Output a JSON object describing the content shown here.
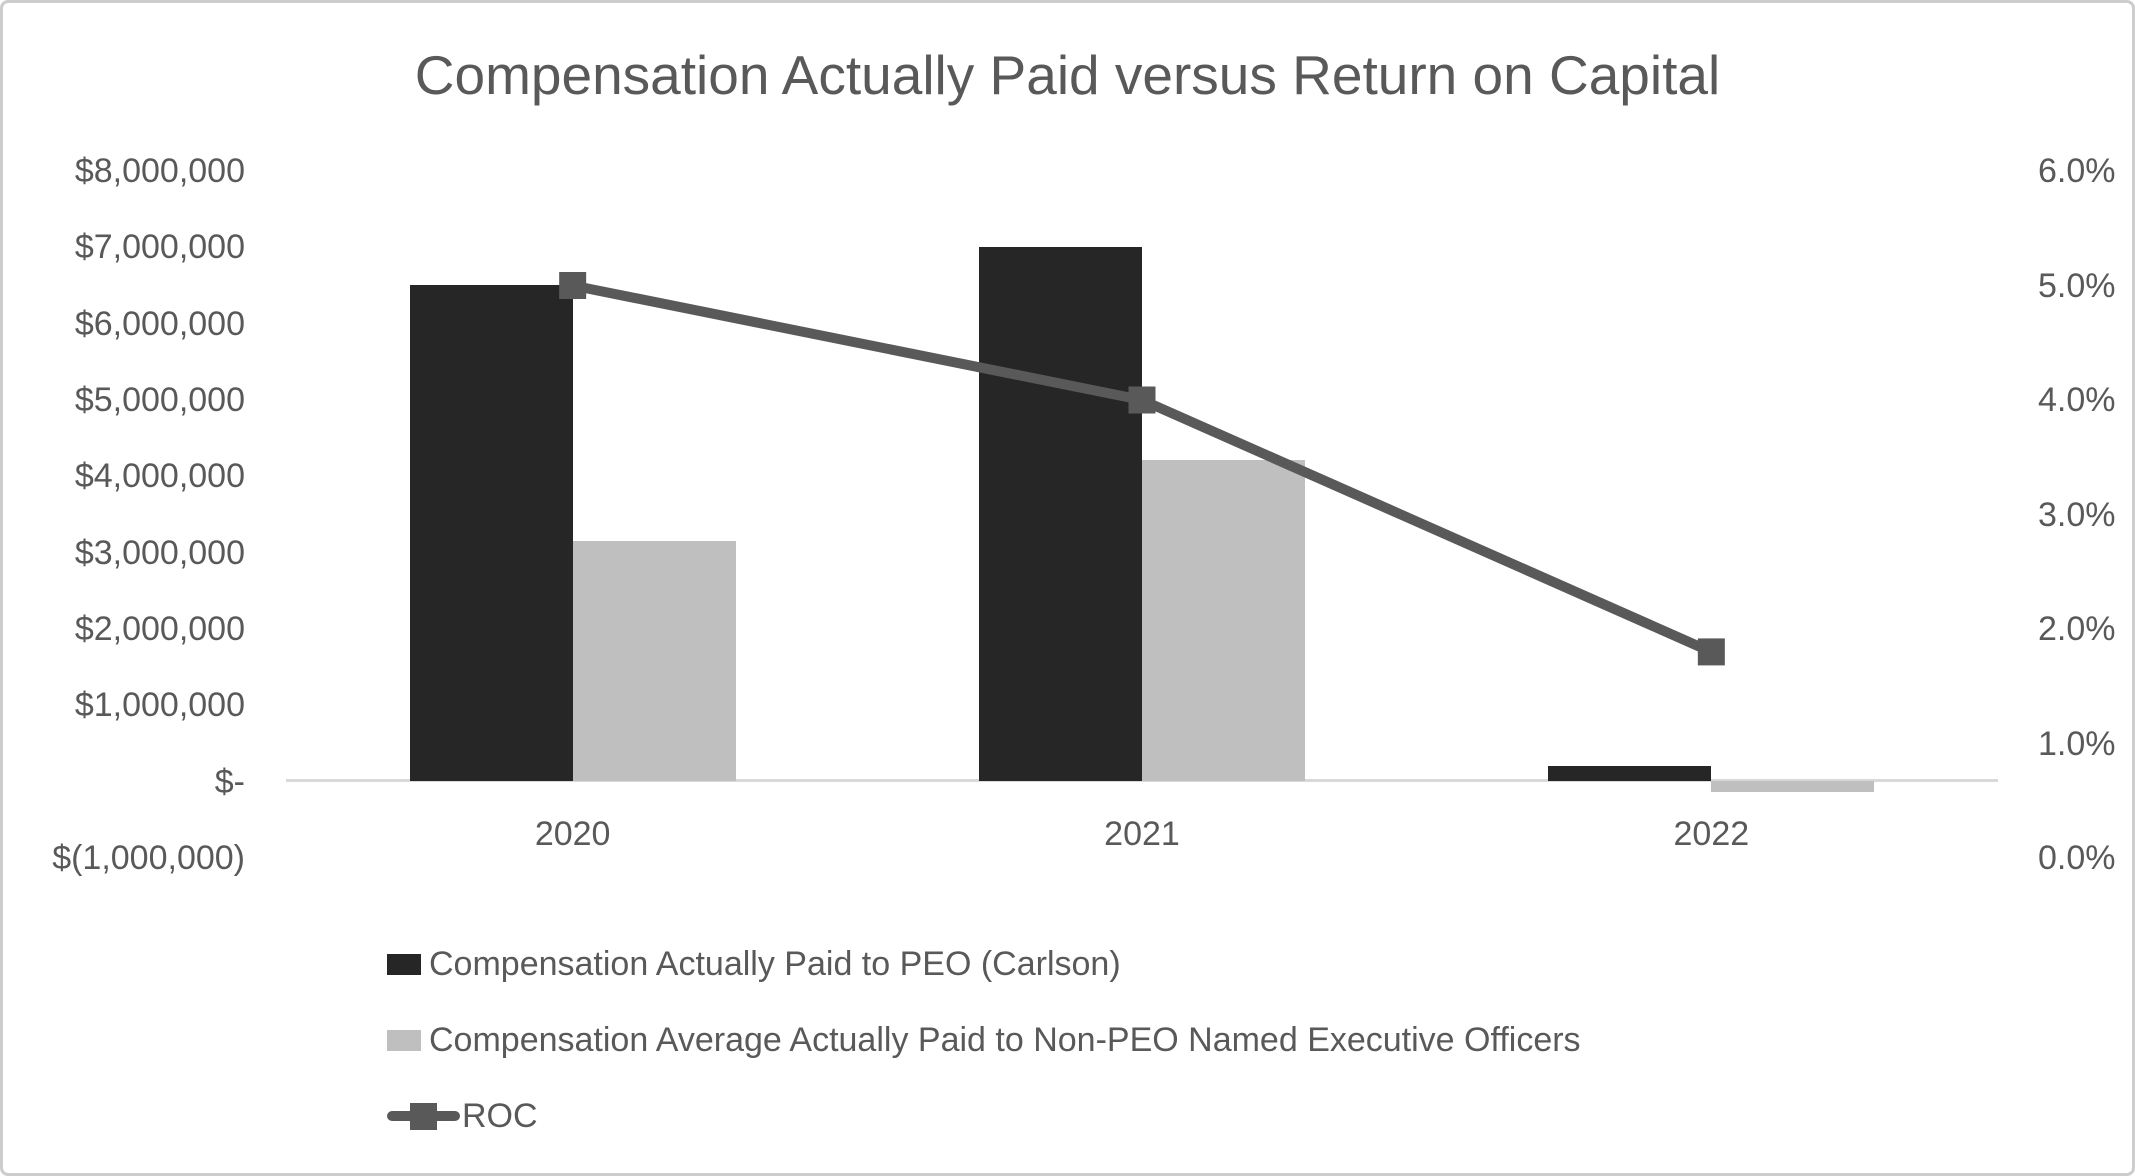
{
  "chart_data": {
    "type": "combo",
    "title": "Compensation Actually Paid versus Return on Capital",
    "categories": [
      "2020",
      "2021",
      "2022"
    ],
    "series": [
      {
        "name": "Compensation Actually Paid to PEO (Carlson)",
        "type": "bar",
        "axis": "left",
        "color": "#262626",
        "values": [
          6500000,
          7000000,
          200000
        ]
      },
      {
        "name": "Compensation Average Actually Paid to Non-PEO Named Executive Officers",
        "type": "bar",
        "axis": "left",
        "color": "#bfbfbf",
        "values": [
          3150000,
          4200000,
          -150000
        ]
      },
      {
        "name": "ROC",
        "type": "line",
        "axis": "right",
        "color": "#595959",
        "marker": "square",
        "unit": "%",
        "values": [
          5.0,
          4.0,
          1.8
        ]
      }
    ],
    "left_axis": {
      "min": -1000000,
      "max": 8000000,
      "step": 1000000,
      "ticks": [
        "$8,000,000",
        "$7,000,000",
        "$6,000,000",
        "$5,000,000",
        "$4,000,000",
        "$3,000,000",
        "$2,000,000",
        "$1,000,000",
        "$-",
        "$(1,000,000)"
      ]
    },
    "right_axis": {
      "min": 0.0,
      "max": 6.0,
      "step": 1.0,
      "ticks": [
        "6.0%",
        "5.0%",
        "4.0%",
        "3.0%",
        "2.0%",
        "1.0%",
        "0.0%"
      ]
    },
    "gridlines": false,
    "legend_position": "bottom-left",
    "colors": {
      "axis_line": "#d9d9d9",
      "text": "#595959",
      "background": "#ffffff",
      "frame_border": "#cdcdcd"
    }
  }
}
